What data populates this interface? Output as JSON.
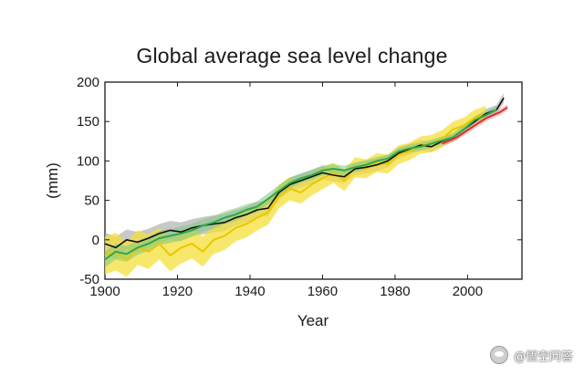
{
  "chart_data": {
    "type": "line",
    "title": "Global average sea level change",
    "xlabel": "Year",
    "ylabel": "(mm)",
    "xlim": [
      1900,
      2015
    ],
    "ylim": [
      -50,
      200
    ],
    "xticks": [
      1900,
      1920,
      1940,
      1960,
      1980,
      2000
    ],
    "yticks": [
      -50,
      0,
      50,
      100,
      150,
      200
    ],
    "xtick_labels": [
      "1900",
      "1920",
      "1940",
      "1960",
      "1980",
      "2000"
    ],
    "ytick_labels": [
      "-50",
      "0",
      "50",
      "100",
      "150",
      "200"
    ],
    "series": [
      {
        "name": "black",
        "color": "#111111",
        "band_color": "#9a9a9a",
        "x": [
          1900,
          1903,
          1906,
          1909,
          1912,
          1915,
          1918,
          1921,
          1924,
          1927,
          1930,
          1933,
          1936,
          1939,
          1942,
          1945,
          1948,
          1951,
          1954,
          1957,
          1960,
          1963,
          1966,
          1969,
          1972,
          1975,
          1978,
          1981,
          1984,
          1987,
          1990,
          1993,
          1996,
          1999,
          2002,
          2005,
          2008,
          2010
        ],
        "values": [
          -5,
          -10,
          0,
          -3,
          2,
          8,
          12,
          10,
          15,
          18,
          20,
          22,
          28,
          32,
          38,
          40,
          60,
          70,
          75,
          80,
          85,
          82,
          80,
          90,
          92,
          95,
          100,
          110,
          115,
          120,
          118,
          125,
          130,
          140,
          150,
          160,
          165,
          180
        ],
        "band": [
          14,
          14,
          13,
          13,
          12,
          12,
          12,
          12,
          11,
          11,
          11,
          11,
          10,
          10,
          10,
          10,
          9,
          9,
          9,
          9,
          9,
          8,
          8,
          8,
          8,
          8,
          8,
          7,
          7,
          7,
          7,
          6,
          6,
          6,
          6,
          6,
          6,
          6
        ]
      },
      {
        "name": "yellow",
        "color": "#e8c800",
        "band_color": "#f4e03a",
        "x": [
          1900,
          1903,
          1906,
          1909,
          1912,
          1915,
          1918,
          1921,
          1924,
          1927,
          1930,
          1933,
          1936,
          1939,
          1942,
          1945,
          1948,
          1951,
          1954,
          1957,
          1960,
          1963,
          1966,
          1969,
          1972,
          1975,
          1978,
          1981,
          1984,
          1987,
          1990,
          1993,
          1996,
          1999,
          2002,
          2005
        ],
        "values": [
          -20,
          -15,
          -25,
          -10,
          -15,
          -5,
          -20,
          -10,
          -5,
          -15,
          0,
          5,
          15,
          20,
          28,
          35,
          55,
          65,
          60,
          70,
          78,
          85,
          75,
          92,
          90,
          98,
          96,
          108,
          112,
          120,
          122,
          128,
          140,
          145,
          155,
          160
        ],
        "band": [
          24,
          24,
          22,
          22,
          22,
          20,
          20,
          20,
          19,
          19,
          18,
          18,
          17,
          17,
          16,
          16,
          15,
          15,
          14,
          14,
          14,
          13,
          13,
          13,
          12,
          12,
          12,
          12,
          11,
          11,
          11,
          11,
          10,
          10,
          10,
          10
        ]
      },
      {
        "name": "green",
        "color": "#2ea84a",
        "band_color": "#7fc97f",
        "x": [
          1900,
          1903,
          1906,
          1909,
          1912,
          1915,
          1918,
          1921,
          1924,
          1927,
          1930,
          1933,
          1936,
          1939,
          1942,
          1945,
          1948,
          1951,
          1954,
          1957,
          1960,
          1963,
          1966,
          1969,
          1972,
          1975,
          1978,
          1981,
          1984,
          1987,
          1990,
          1993,
          1996,
          1999,
          2002,
          2005,
          2008
        ],
        "values": [
          -25,
          -15,
          -18,
          -10,
          -5,
          2,
          5,
          8,
          12,
          18,
          22,
          28,
          32,
          38,
          42,
          52,
          62,
          72,
          78,
          82,
          88,
          90,
          88,
          92,
          95,
          100,
          103,
          112,
          116,
          118,
          122,
          126,
          130,
          140,
          152,
          158,
          165
        ],
        "band": [
          10,
          10,
          10,
          9,
          9,
          9,
          9,
          9,
          8,
          8,
          8,
          8,
          8,
          7,
          7,
          7,
          7,
          7,
          6,
          6,
          6,
          6,
          6,
          6,
          6,
          5,
          5,
          5,
          5,
          5,
          5,
          5,
          5,
          5,
          5,
          5,
          5
        ]
      },
      {
        "name": "red",
        "color": "#d93030",
        "band_color": "#f2a0a0",
        "x": [
          1993,
          1995,
          1997,
          1999,
          2001,
          2003,
          2005,
          2007,
          2009,
          2011
        ],
        "values": [
          122,
          126,
          130,
          136,
          142,
          148,
          154,
          158,
          162,
          168
        ],
        "band": [
          4,
          4,
          4,
          4,
          4,
          4,
          4,
          4,
          4,
          4
        ]
      }
    ]
  },
  "watermark": {
    "icon": "chat-bubble-icon",
    "text": "@悟空问答"
  }
}
